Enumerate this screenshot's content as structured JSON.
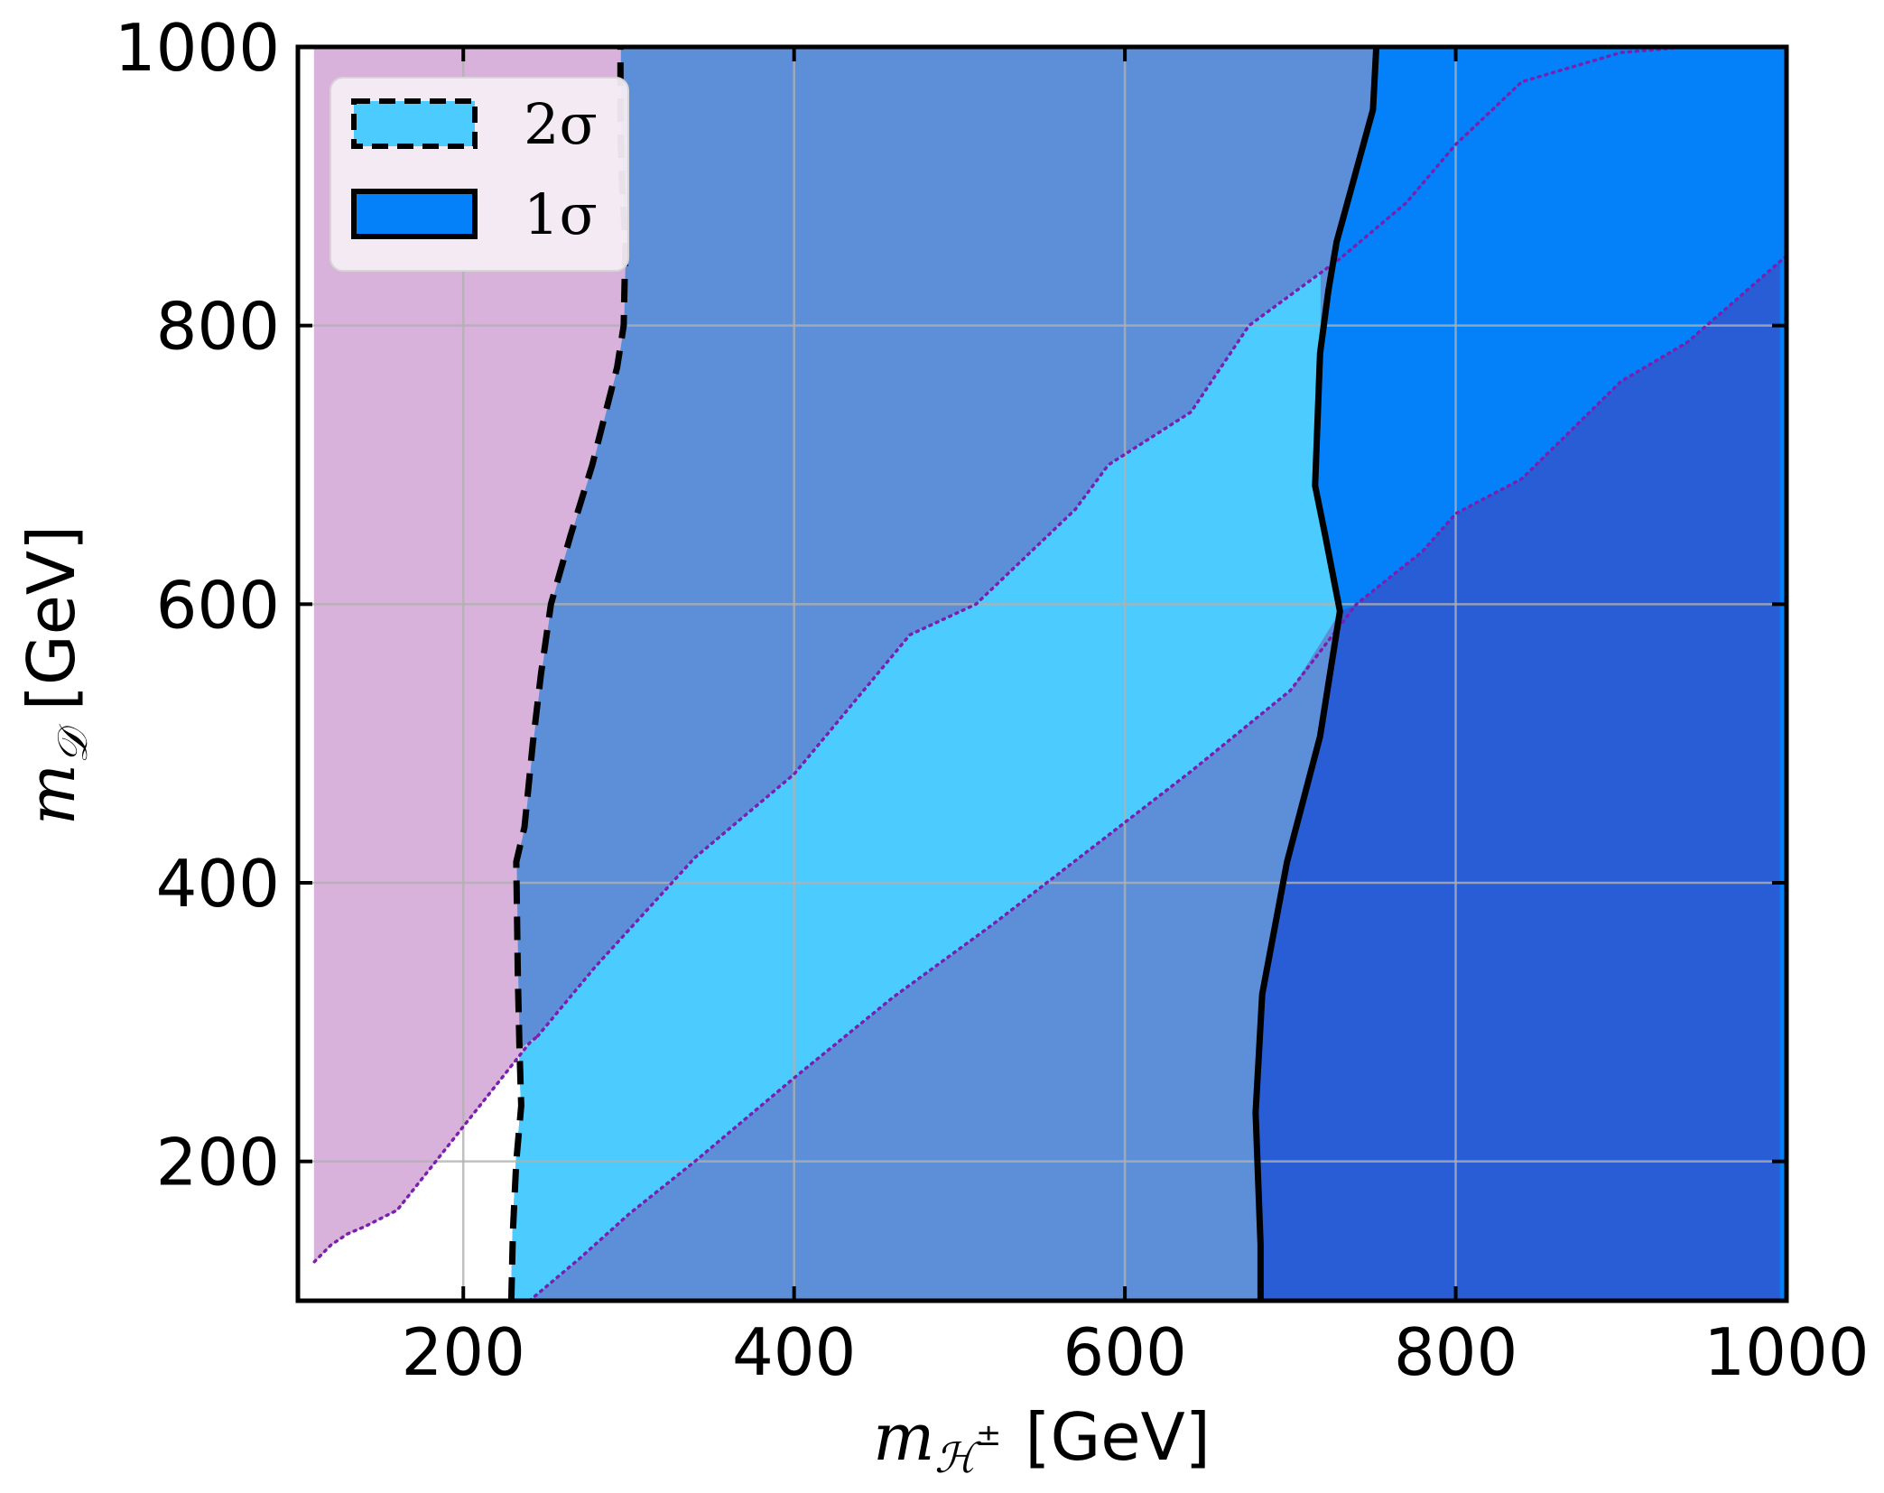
{
  "chart_data": {
    "type": "area",
    "xlabel": "m_{ℋ±} [GeV]",
    "ylabel": "m_{𝒟} [GeV]",
    "xlabel_parts": {
      "symbol": "m",
      "subscript": "ℋ",
      "superscript": "±",
      "unit": "[GeV]"
    },
    "ylabel_parts": {
      "symbol": "m",
      "subscript": "𝒟",
      "unit": "[GeV]"
    },
    "xlim": [
      100,
      1000
    ],
    "ylim": [
      100,
      1000
    ],
    "x_ticks": [
      200,
      400,
      600,
      800,
      1000
    ],
    "y_ticks": [
      200,
      400,
      600,
      800,
      1000
    ],
    "x_tick_labels": [
      "200",
      "400",
      "600",
      "800",
      "1000"
    ],
    "y_tick_labels": [
      "200",
      "400",
      "600",
      "800",
      "1000"
    ],
    "grid": true,
    "legend_position": "top-left",
    "legend": [
      {
        "label": "2σ",
        "line_style": "dashed",
        "fill": "#4ccbff"
      },
      {
        "label": "1σ",
        "line_style": "solid",
        "fill": "#0480f8"
      }
    ],
    "colors": {
      "excluded_pink": "#d8b2da",
      "medium_blue": "#5c8fd7",
      "light_blue": "#4ccbff",
      "bright_blue": "#0480f8",
      "dark_blue": "#285dd5",
      "dotted_boundary": "#7a1fb0",
      "contour": "#000000",
      "grid": "#b0b0b0"
    },
    "regions": {
      "pink_boundary": [
        [
          110,
          1000
        ],
        [
          110,
          128
        ],
        [
          120,
          140
        ],
        [
          130,
          148
        ],
        [
          140,
          153
        ],
        [
          160,
          165
        ],
        [
          180,
          195
        ],
        [
          200,
          225
        ],
        [
          240,
          285
        ],
        [
          245,
          290
        ]
      ],
      "two_sigma_contour": [
        [
          229,
          100
        ],
        [
          230,
          150
        ],
        [
          232,
          200
        ],
        [
          235,
          240
        ],
        [
          234,
          280
        ],
        [
          233,
          330
        ],
        [
          232,
          415
        ],
        [
          237,
          440
        ],
        [
          242,
          500
        ],
        [
          247,
          550
        ],
        [
          253,
          600
        ],
        [
          265,
          650
        ],
        [
          278,
          700
        ],
        [
          293,
          770
        ],
        [
          297,
          800
        ],
        [
          298,
          860
        ],
        [
          296,
          900
        ],
        [
          295,
          940
        ],
        [
          295,
          1000
        ]
      ],
      "one_sigma_contour": [
        [
          682,
          100
        ],
        [
          682,
          140
        ],
        [
          679,
          235
        ],
        [
          683,
          320
        ],
        [
          698,
          415
        ],
        [
          718,
          505
        ],
        [
          730,
          595
        ],
        [
          721,
          650
        ],
        [
          715,
          685
        ],
        [
          718,
          780
        ],
        [
          723,
          825
        ],
        [
          728,
          860
        ],
        [
          750,
          955
        ],
        [
          752,
          1000
        ]
      ],
      "light_band_upper": [
        [
          245,
          290
        ],
        [
          280,
          340
        ],
        [
          340,
          418
        ],
        [
          400,
          478
        ],
        [
          470,
          578
        ],
        [
          510,
          600
        ],
        [
          570,
          668
        ],
        [
          590,
          700
        ],
        [
          640,
          738
        ],
        [
          675,
          800
        ],
        [
          730,
          848
        ],
        [
          770,
          888
        ],
        [
          800,
          930
        ],
        [
          840,
          975
        ],
        [
          900,
          996
        ],
        [
          940,
          1000
        ],
        [
          1000,
          1000
        ]
      ],
      "light_band_lower": [
        [
          240,
          100
        ],
        [
          270,
          130
        ],
        [
          300,
          162
        ],
        [
          340,
          200
        ],
        [
          400,
          260
        ],
        [
          460,
          318
        ],
        [
          520,
          370
        ],
        [
          580,
          425
        ],
        [
          640,
          480
        ],
        [
          700,
          538
        ],
        [
          740,
          600
        ],
        [
          780,
          638
        ],
        [
          800,
          665
        ],
        [
          840,
          690
        ],
        [
          900,
          760
        ],
        [
          940,
          788
        ],
        [
          1000,
          850
        ]
      ],
      "right_strip_x": 996
    }
  }
}
